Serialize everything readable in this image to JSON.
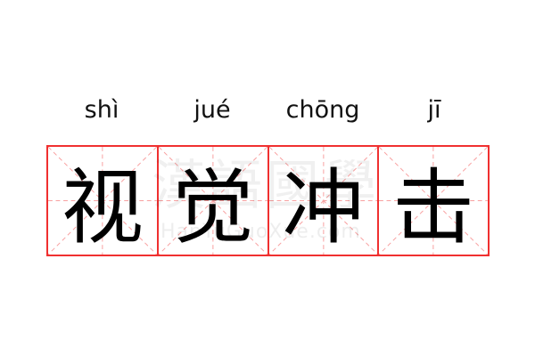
{
  "entries": [
    {
      "pinyin": "shì",
      "char": "视"
    },
    {
      "pinyin": "jué",
      "char": "觉"
    },
    {
      "pinyin": "chōng",
      "char": "冲"
    },
    {
      "pinyin": "jī",
      "char": "击"
    }
  ],
  "watermark": {
    "chars": "漢語國學",
    "site": "HanYuGuoXue.com"
  },
  "colors": {
    "grid_border": "#f03030",
    "guide_lines": "#f8a0a0",
    "text": "#000000"
  }
}
